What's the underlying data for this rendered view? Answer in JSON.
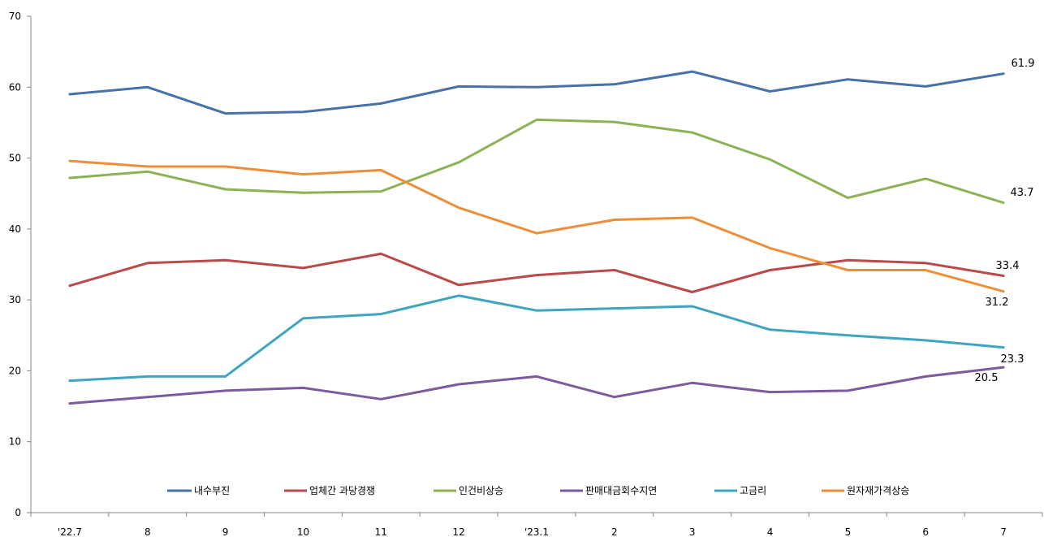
{
  "chart_data": {
    "type": "line",
    "categories": [
      "'22.7",
      "8",
      "9",
      "10",
      "11",
      "12",
      "'23.1",
      "2",
      "3",
      "4",
      "5",
      "6",
      "7"
    ],
    "ylim": [
      0,
      70
    ],
    "yticks": [
      0,
      10,
      20,
      30,
      40,
      50,
      60,
      70
    ],
    "grid": false,
    "legend_position": "bottom-inside",
    "series": [
      {
        "name": "내수부진",
        "color": "#4672A8",
        "values": [
          59.0,
          60.0,
          56.3,
          56.5,
          57.7,
          60.1,
          60.0,
          60.4,
          62.2,
          59.4,
          61.1,
          60.1,
          61.9
        ]
      },
      {
        "name": "업체간 과당경쟁",
        "color": "#B94A48",
        "values": [
          32.0,
          35.2,
          35.6,
          34.5,
          36.5,
          32.1,
          33.5,
          34.2,
          31.1,
          34.2,
          35.6,
          35.2,
          33.4
        ]
      },
      {
        "name": "인건비상승",
        "color": "#8DB255",
        "values": [
          47.2,
          48.1,
          45.6,
          45.1,
          45.3,
          49.4,
          55.4,
          55.1,
          53.6,
          49.8,
          44.4,
          47.1,
          43.7
        ]
      },
      {
        "name": "판매대금회수지연",
        "color": "#7B5A9E",
        "values": [
          15.4,
          16.3,
          17.2,
          17.6,
          16.0,
          18.1,
          19.2,
          16.3,
          18.3,
          17.0,
          17.2,
          19.2,
          20.5
        ]
      },
      {
        "name": "고금리",
        "color": "#3FA5BE",
        "values": [
          18.6,
          19.2,
          19.2,
          27.4,
          28.0,
          30.6,
          28.5,
          28.8,
          29.1,
          25.8,
          25.0,
          24.3,
          23.3
        ]
      },
      {
        "name": "원자재가격상승",
        "color": "#EE8E38",
        "values": [
          49.6,
          48.8,
          48.8,
          47.7,
          48.3,
          43.0,
          39.4,
          41.3,
          41.6,
          37.3,
          34.2,
          34.2,
          31.2
        ]
      }
    ],
    "data_labels": [
      "61.9",
      "43.7",
      "33.4",
      "31.2",
      "23.3",
      "20.5"
    ]
  }
}
